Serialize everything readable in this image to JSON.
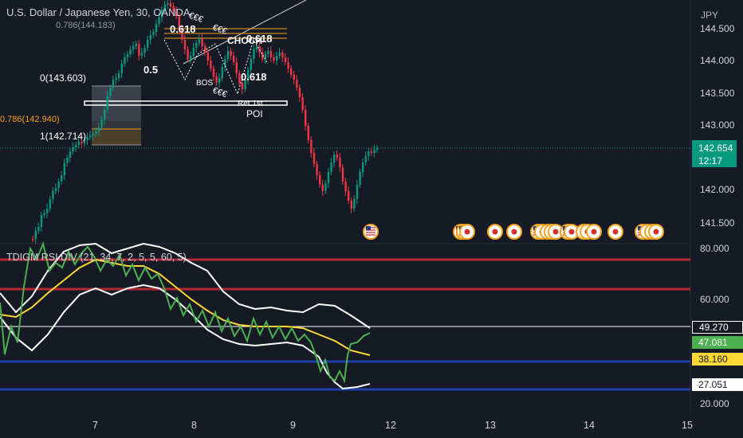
{
  "header": {
    "symbol_title": "U.S. Dollar / Japanese Yen, 30, OANDA",
    "currency": "JPY"
  },
  "indicator": {
    "title": "TDIGM RSI DIV (21, 34, 7, 2, 5, 5, 60, 5)"
  },
  "price_axis": {
    "labels": [
      "144.500",
      "144.000",
      "143.500",
      "143.000",
      "142.000",
      "141.500"
    ]
  },
  "rsi_axis": {
    "labels": [
      "80.000",
      "60.000",
      "20.000"
    ]
  },
  "time_axis": {
    "labels": [
      "7",
      "8",
      "9",
      "12",
      "13",
      "14",
      "15"
    ]
  },
  "current_price": {
    "value": "142.654",
    "countdown": "12:17"
  },
  "rsi_tags": {
    "white_band": "49.270",
    "green_line": "47.081",
    "yellow_line": "38.160",
    "lower_band": "27.051"
  },
  "annotations": {
    "fib_zero": "0(143.603)",
    "fib_one": "1(142.714)",
    "fib_618_a": "0.618",
    "fib_618_b": "0.618",
    "fib_618_c": "0.618",
    "fib_05": "0.5",
    "choch": "CHOCH",
    "bos": "BOS",
    "eee_1": "€€€",
    "eee_2": "€€€",
    "eee_3": "€€€",
    "ret": "Ret.1st",
    "poi": "POI",
    "fib_786_top": "0.786(144.183)",
    "fib_786_left": "0.786(142.940)"
  },
  "colors": {
    "background": "#161a25",
    "bull": "#089981",
    "bear": "#f23645",
    "rsi_green": "#4caf50",
    "rsi_yellow": "#fdd835",
    "band_white": "#ffffff",
    "line_red": "#b22833",
    "line_blue": "#1e40af",
    "fib_orange": "#f7a21b"
  },
  "event_icons": [
    "us-flag-icon",
    "us-flag-icon",
    "japan-flag-icon",
    "japan-flag-icon",
    "us-flag-icon",
    "us-flag-icon",
    "us-flag-icon",
    "japan-flag-icon",
    "japan-flag-icon",
    "us-flag-icon",
    "us-flag-icon"
  ]
}
